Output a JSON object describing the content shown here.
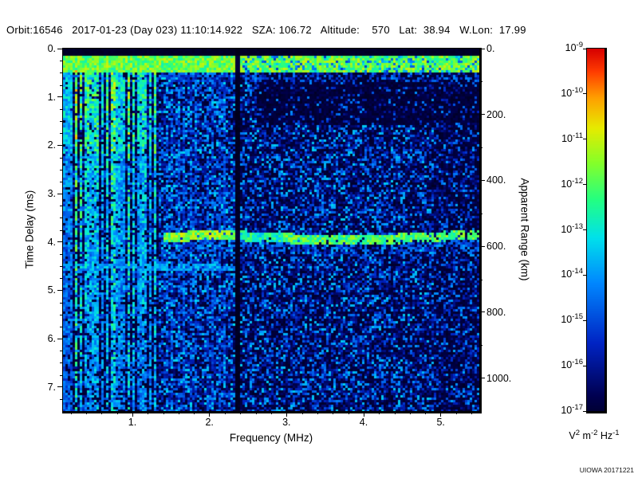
{
  "header": {
    "text": "Orbit:16546   2017-01-23 (Day 023) 11:10:14.922   SZA: 106.72   Altitude:    570   Lat:  38.94   W.Lon:  17.99",
    "fields": {
      "orbit": "16546",
      "date": "2017-01-23",
      "day_of_year": "023",
      "time_utc": "11:10:14.922",
      "sza_deg": "106.72",
      "altitude_km": "570",
      "latitude_deg": "38.94",
      "west_longitude_deg": "17.99"
    }
  },
  "credit": "UIOWA 20171221",
  "chart_data": {
    "type": "heatmap",
    "xlabel": "Frequency (MHz)",
    "x_range": [
      0.1,
      5.5
    ],
    "x_ticks": {
      "values": [
        1,
        2,
        3,
        4,
        5
      ],
      "labels": [
        "1.",
        "2.",
        "3.",
        "4.",
        "5."
      ]
    },
    "ylabel_left": "Time Delay (ms)",
    "y_left_range": [
      0,
      7.5
    ],
    "y_left_ticks": {
      "values": [
        0,
        1,
        2,
        3,
        4,
        5,
        6,
        7
      ],
      "labels": [
        "0.",
        "1.",
        "2.",
        "3.",
        "4.",
        "5.",
        "6.",
        "7."
      ]
    },
    "ylabel_right": "Apparent Range (km)",
    "y_right_range": [
      0,
      1100
    ],
    "y_right_ticks": {
      "values": [
        0,
        200,
        400,
        600,
        800,
        1000
      ],
      "labels": [
        "0.",
        "200.",
        "400.",
        "600.",
        "800.",
        "1000."
      ]
    },
    "y_axis_inverted": true,
    "grid": false,
    "colorbar": {
      "scale": "log",
      "max": "1e-9",
      "min": "1e-17",
      "tick_mantissa": "10",
      "tick_exponents": [
        -9,
        -10,
        -11,
        -12,
        -13,
        -14,
        -15,
        -16,
        -17
      ],
      "colormap": "rainbow (red = high intensity, dark blue = low intensity)",
      "unit_text": "V2 m-2 Hz-1",
      "unit_parts": [
        {
          "b": "V",
          "e": "2"
        },
        {
          "b": "m",
          "e": "-2"
        },
        {
          "b": "Hz",
          "e": "-1"
        }
      ]
    },
    "features": [
      {
        "name": "transmit-pulse-band",
        "description": "bright green horizontal band across all frequencies near zero delay",
        "time_delay_ms": [
          0.15,
          0.5
        ]
      },
      {
        "name": "plasma-harmonic-stripes",
        "description": "bright evenly spaced vertical green stripes at low frequency extending full height",
        "freq_mhz": [
          0.1,
          1.35
        ],
        "spacing_mhz": 0.07
      },
      {
        "name": "ionospheric-echo-trace",
        "description": "bright green horizontal echo trace",
        "time_delay_ms": 3.9,
        "apparent_range_km": 600,
        "freq_mhz": [
          1.4,
          5.5
        ]
      },
      {
        "name": "faint-secondary-line",
        "description": "faint cyan horizontal line at low frequencies",
        "time_delay_ms": 4.5,
        "freq_mhz": [
          0.1,
          2.3
        ]
      },
      {
        "name": "interference-gap",
        "description": "dark vertical gap (no signal) across full height",
        "freq_mhz": 2.37
      },
      {
        "name": "noise-background",
        "description": "blue speckled noise over black; sparser and darker in upper-right region"
      }
    ]
  }
}
